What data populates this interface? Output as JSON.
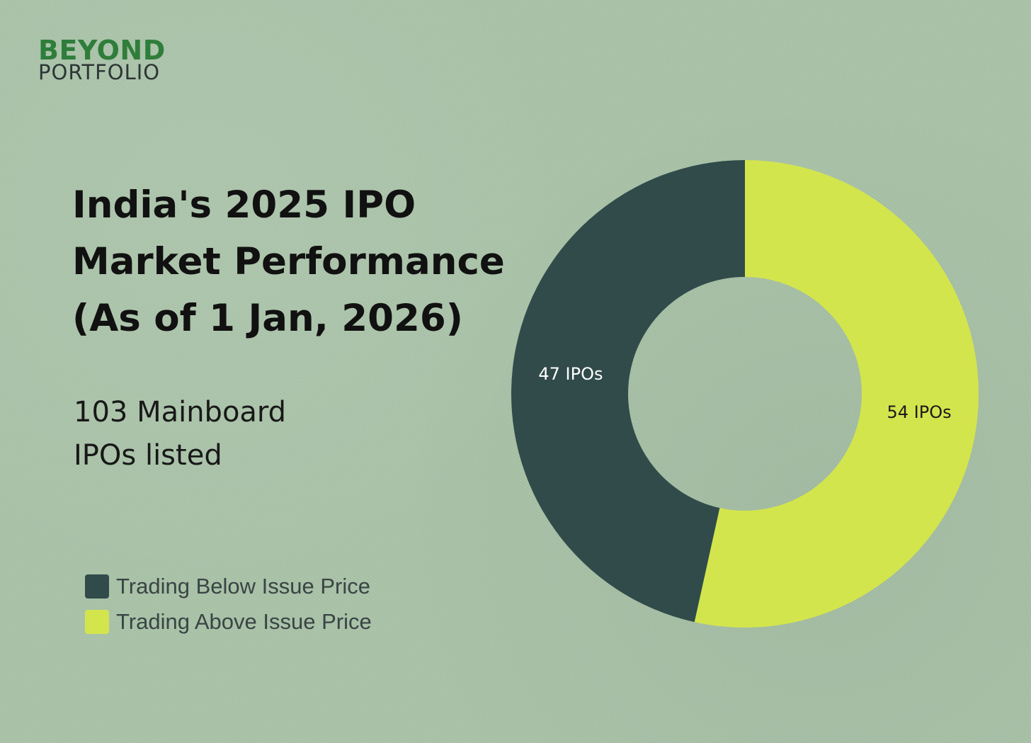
{
  "brand": {
    "line1": "BEYOND",
    "line2": "PORTFOLIO"
  },
  "title_lines": [
    "India's 2025 IPO",
    "Market Performance",
    "(As of 1 Jan, 2026)"
  ],
  "subtitle_lines": [
    "103 Mainboard",
    "IPOs listed"
  ],
  "colors": {
    "below": "#304b4a",
    "above": "#d3e54c",
    "below_label_text": "#ffffff",
    "above_label_text": "#1a1a1a"
  },
  "chart_data": {
    "type": "pie",
    "variant": "donut",
    "title": "India's 2025 IPO Market Performance (As of 1 Jan, 2026)",
    "categories": [
      "Trading Above Issue Price",
      "Trading Below Issue Price"
    ],
    "values": [
      54,
      47
    ],
    "data_labels": [
      "54 IPOs",
      "47 IPOs"
    ],
    "legend": [
      "Trading Below Issue Price",
      "Trading Above Issue Price"
    ],
    "legend_position": "bottom-left"
  }
}
